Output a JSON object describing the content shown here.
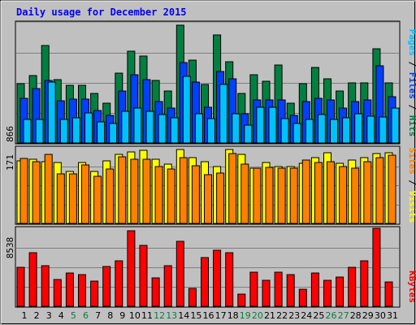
{
  "chart_data": {
    "type": "bar",
    "title": "Daily usage for December 2015",
    "days": [
      "1",
      "2",
      "3",
      "4",
      "5",
      "6",
      "7",
      "8",
      "9",
      "10",
      "11",
      "12",
      "13",
      "14",
      "15",
      "16",
      "17",
      "18",
      "19",
      "20",
      "21",
      "22",
      "23",
      "24",
      "25",
      "26",
      "27",
      "28",
      "29",
      "30",
      "31"
    ],
    "weekend_days": [
      5,
      6,
      12,
      13,
      19,
      20,
      26,
      27
    ],
    "panels": {
      "top": {
        "max_label": "866",
        "ylim": [
          0,
          866
        ],
        "legend": [
          "Pages",
          "Files",
          "Hits"
        ],
        "series": [
          {
            "name": "Hits",
            "color": "#008040",
            "values": [
              430,
              485,
              705,
              455,
              415,
              415,
              355,
              287,
              505,
              663,
              626,
              452,
              377,
              847,
              594,
              419,
              781,
              584,
              356,
              492,
              444,
              563,
              287,
              425,
              542,
              460,
              376,
              431,
              435,
              678,
              431
            ]
          },
          {
            "name": "Files",
            "color": "#0040ff",
            "values": [
              320,
              390,
              448,
              306,
              315,
              314,
              232,
              200,
              373,
              493,
              458,
              299,
              250,
              580,
              437,
              258,
              512,
              460,
              210,
              312,
              313,
              313,
              200,
              300,
              320,
              311,
              250,
              300,
              311,
              554,
              332
            ]
          },
          {
            "name": "Pages",
            "color": "#00c0ff",
            "values": [
              172,
              172,
              437,
              167,
              180,
              218,
              152,
              138,
              227,
              250,
              229,
              204,
              180,
              480,
              208,
              175,
              423,
              213,
              130,
              256,
              258,
              174,
              138,
              172,
              207,
              168,
              179,
              210,
              192,
              189,
              252
            ]
          }
        ]
      },
      "middle": {
        "max_label": "171",
        "ylim": [
          0,
          171
        ],
        "legend": [
          "Sites",
          "Visits"
        ],
        "series": [
          {
            "name": "Visits",
            "color": "#ffff00",
            "values": [
              140,
              144,
              139,
              136,
              117,
              136,
              117,
              140,
              155,
              160,
              164,
              143,
              133,
              165,
              148,
              138,
              127,
              166,
              155,
              124,
              137,
              128,
              128,
              135,
              148,
              158,
              135,
              142,
              148,
              156,
              158
            ]
          },
          {
            "name": "Sites",
            "color": "#ff8000",
            "values": [
              146,
              138,
              155,
              111,
              111,
              131,
              106,
              121,
              149,
              143,
              143,
              128,
              122,
              147,
              129,
              110,
              113,
              157,
              133,
              124,
              125,
              124,
              124,
              141,
              137,
              139,
              128,
              124,
              138,
              148,
              152
            ]
          }
        ]
      },
      "bottom": {
        "max_label": "8538",
        "ylim": [
          0,
          8538
        ],
        "legend": [
          "KBytes"
        ],
        "series": [
          {
            "name": "KBytes",
            "color": "#ff0000",
            "values": [
              4300,
              5850,
              4430,
              2950,
              3660,
              3460,
              2790,
              4390,
              5020,
              8290,
              6680,
              3070,
              4430,
              7080,
              1940,
              5350,
              6110,
              5890,
              1340,
              3730,
              2850,
              3720,
              3480,
              1830,
              3650,
              2880,
              3180,
              4260,
              5020,
              8538,
              2710
            ]
          }
        ]
      }
    }
  }
}
